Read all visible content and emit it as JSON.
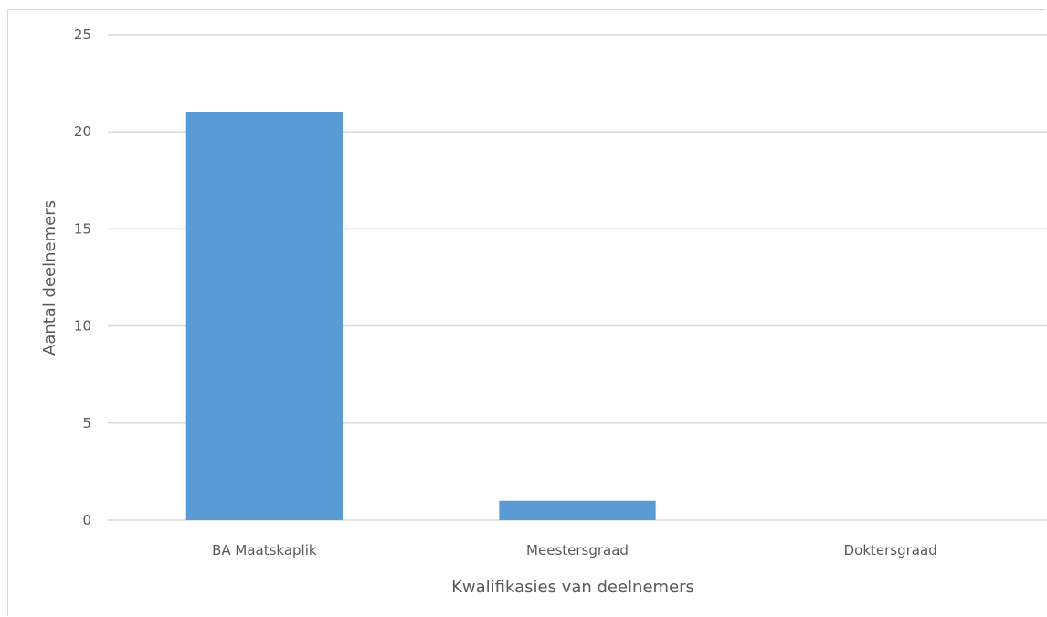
{
  "chart_data": {
    "type": "bar",
    "title": "",
    "xlabel": "Kwalifikasies van deelnemers",
    "ylabel": "Aantal deelnemers",
    "categories": [
      "BA Maatskaplik",
      "Meestersgraad",
      "Doktersgraad"
    ],
    "values": [
      21,
      1,
      0
    ],
    "ylim": [
      0,
      25
    ],
    "yticks": [
      0,
      5,
      10,
      15,
      20,
      25
    ],
    "grid": true,
    "legend": "none",
    "bar_color": "#5b9bd5",
    "grid_color": "#d9d9d9",
    "text_color": "#595959"
  }
}
